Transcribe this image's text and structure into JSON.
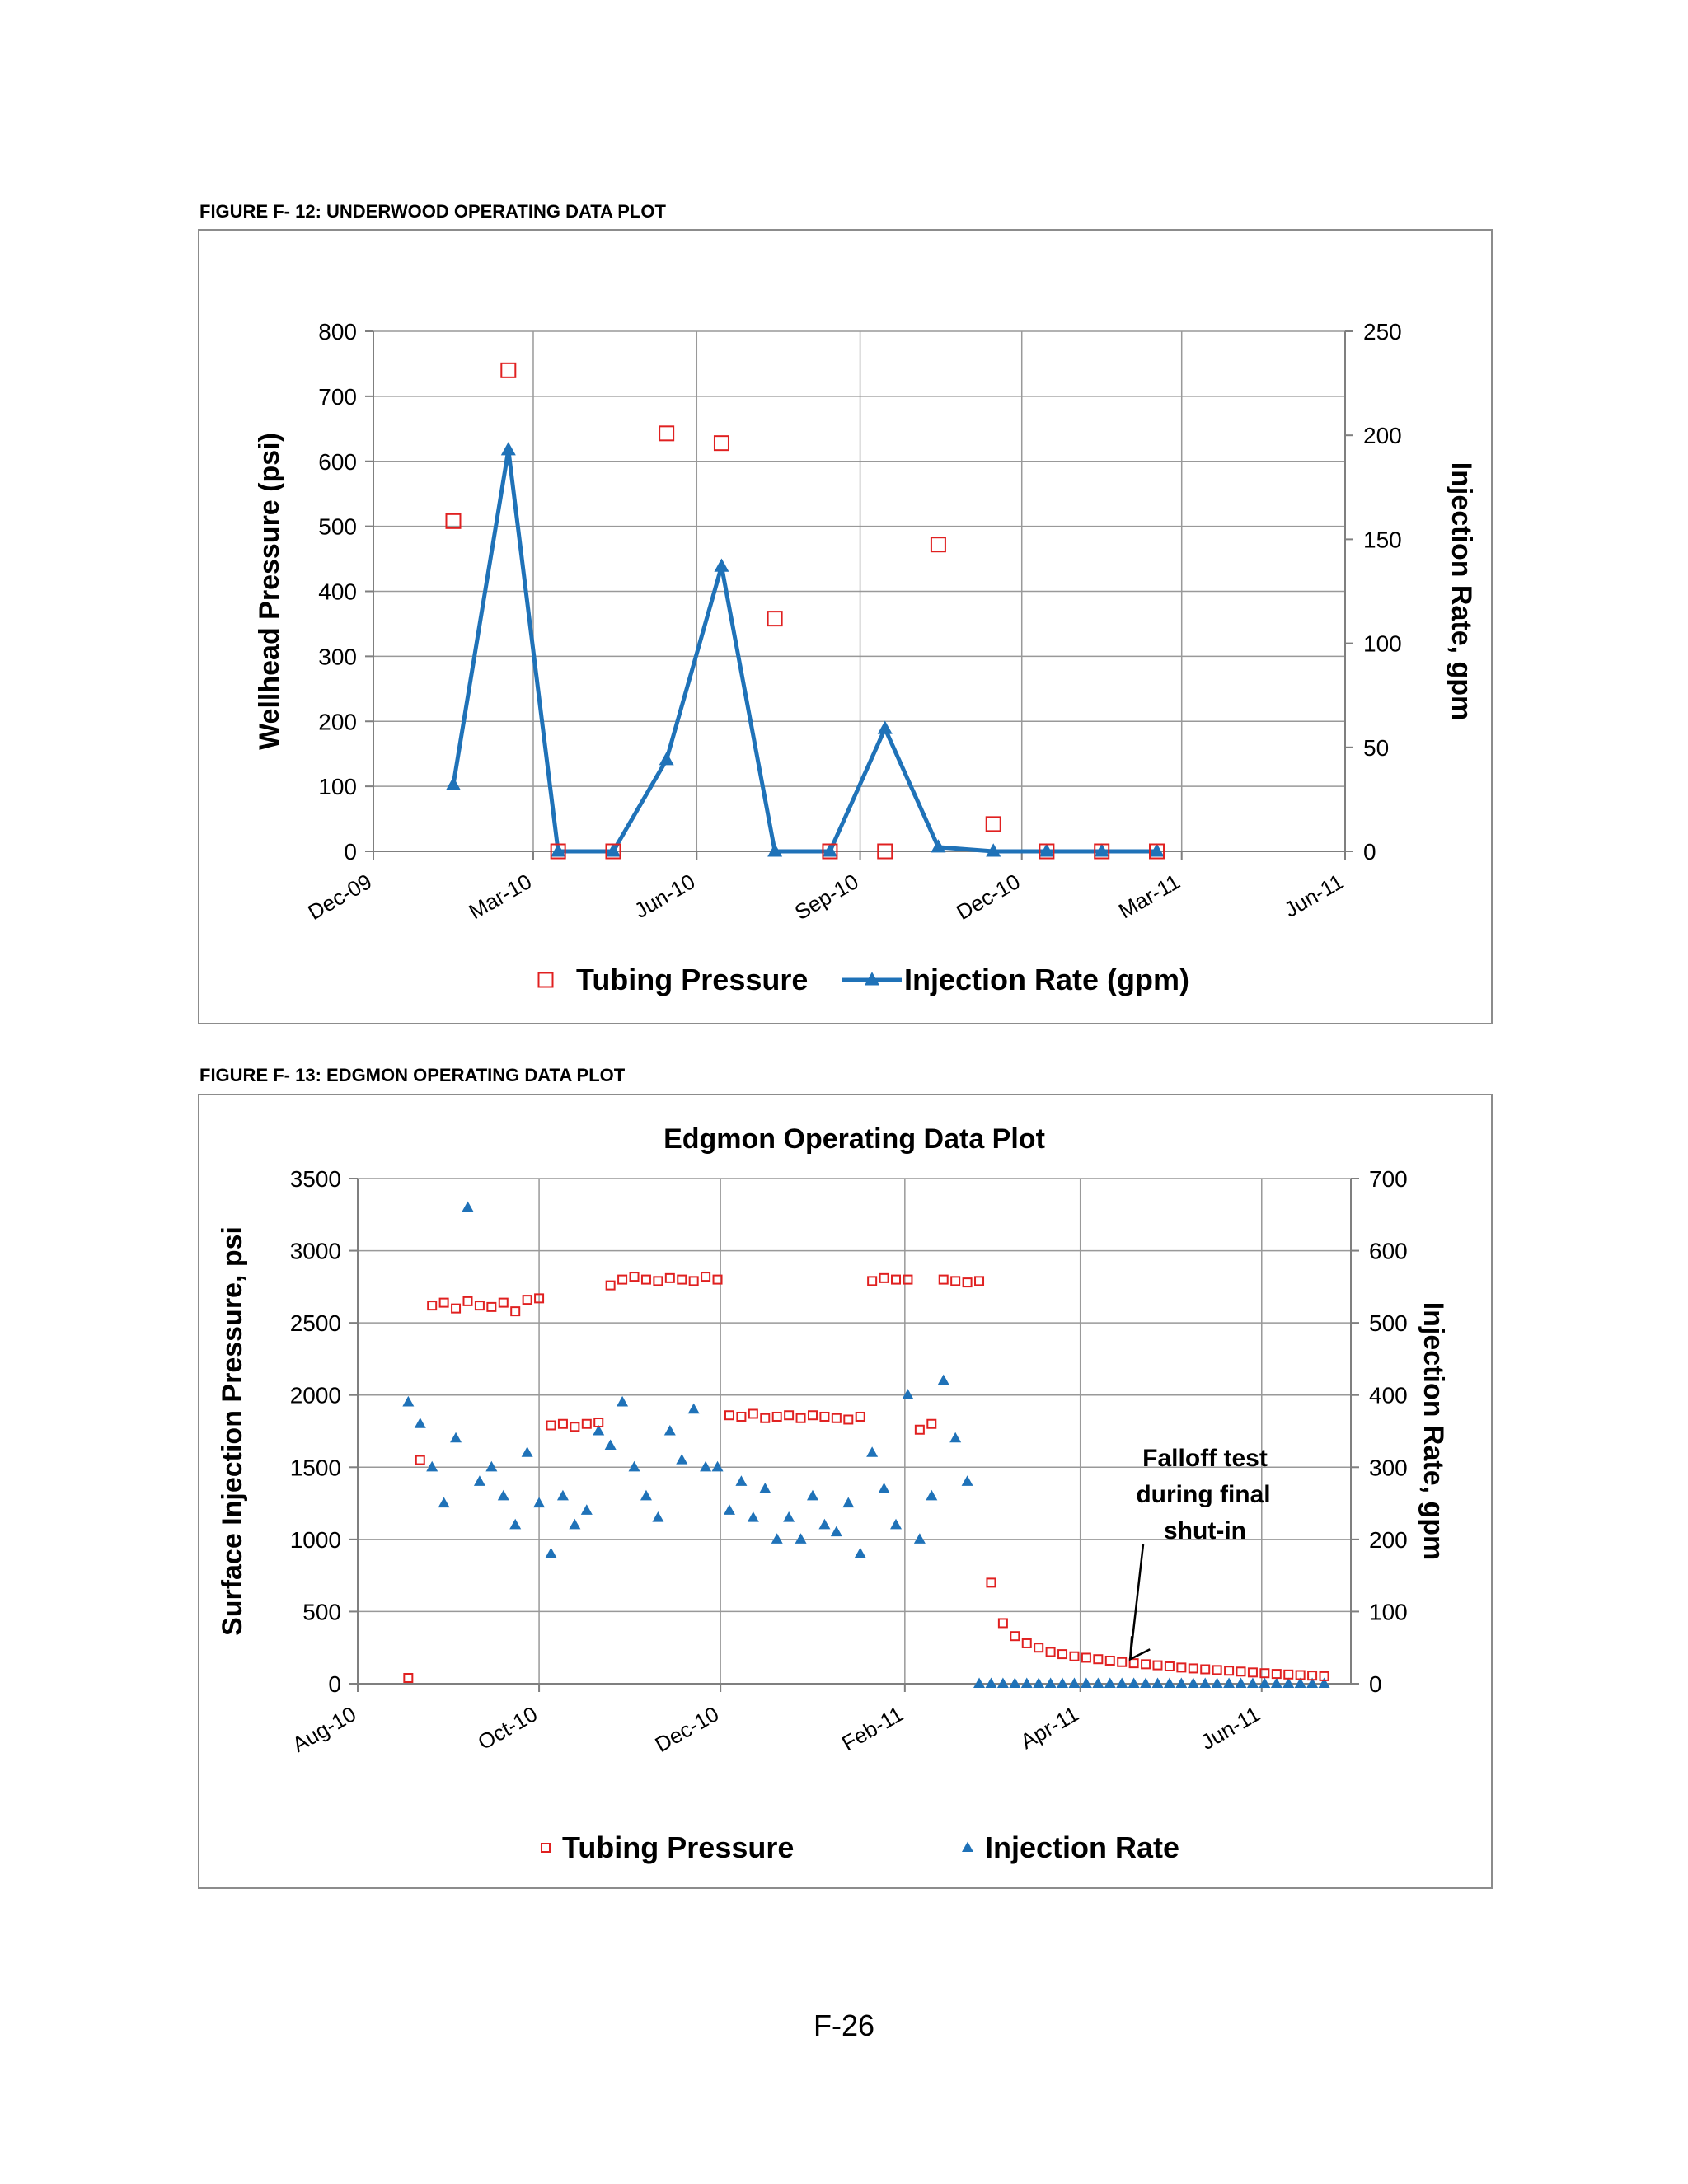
{
  "page": {
    "page_number": "F-26"
  },
  "figures": {
    "underwood_caption": "FIGURE F- 12: UNDERWOOD OPERATING DATA PLOT",
    "edgmon_caption": "FIGURE F- 13: EDGMON OPERATING DATA PLOT"
  },
  "colors": {
    "pressure": "#e02020",
    "rate": "#1f72b8",
    "grid": "#999999"
  },
  "chart_data": [
    {
      "type": "scatter",
      "title": "",
      "x_ticks": [
        "Dec-09",
        "Mar-10",
        "Jun-10",
        "Sep-10",
        "Dec-10",
        "Mar-11",
        "Jun-11"
      ],
      "y_ticks": [
        "0",
        "100",
        "200",
        "300",
        "400",
        "500",
        "600",
        "700",
        "800"
      ],
      "y2_ticks": [
        "0",
        "50",
        "100",
        "150",
        "200",
        "250"
      ],
      "ylabel": "Wellhead Pressure (psi)",
      "y2label": "Injection Rate, gpm",
      "xlim": [
        "Dec-09",
        "Jun-11"
      ],
      "ylim": [
        0,
        800
      ],
      "y2lim": [
        0,
        250
      ],
      "grid": true,
      "legend_position": "bottom",
      "series": [
        {
          "name": "Tubing Pressure",
          "marker": "open-square",
          "axis": "left",
          "x": [
            "2010-01-15",
            "2010-02-15",
            "2010-03-15",
            "2010-04-15",
            "2010-05-15",
            "2010-06-15",
            "2010-07-15",
            "2010-08-15",
            "2010-09-15",
            "2010-10-15",
            "2010-11-15",
            "2010-12-15",
            "2011-01-15",
            "2011-02-15"
          ],
          "y": [
            508,
            740,
            0,
            0,
            643,
            628,
            358,
            0,
            0,
            472,
            42,
            0,
            0,
            0
          ]
        },
        {
          "name": "Injection Rate (gpm)",
          "marker": "filled-triangle-line",
          "axis": "right",
          "x": [
            "2010-01-15",
            "2010-02-15",
            "2010-03-15",
            "2010-04-15",
            "2010-05-15",
            "2010-06-15",
            "2010-07-15",
            "2010-08-15",
            "2010-09-15",
            "2010-10-15",
            "2010-11-15",
            "2010-12-15",
            "2011-01-15",
            "2011-02-15"
          ],
          "y": [
            32,
            193,
            0,
            0,
            44,
            137,
            0,
            0,
            59,
            2,
            0,
            0,
            0,
            0
          ]
        }
      ]
    },
    {
      "type": "scatter",
      "title": "Edgmon Operating Data Plot",
      "x_ticks": [
        "Aug-10",
        "Oct-10",
        "Dec-10",
        "Feb-11",
        "Apr-11",
        "Jun-11"
      ],
      "y_ticks": [
        "0",
        "500",
        "1000",
        "1500",
        "2000",
        "2500",
        "3000",
        "3500"
      ],
      "y2_ticks": [
        "0",
        "100",
        "200",
        "300",
        "400",
        "500",
        "600",
        "700"
      ],
      "ylabel": "Surface Injection Pressure, psi",
      "y2label": "Injection Rate, gpm",
      "xlim": [
        "Aug-10",
        "Jul-11"
      ],
      "ylim": [
        0,
        3500
      ],
      "y2lim": [
        0,
        700
      ],
      "grid": true,
      "legend_position": "bottom",
      "annotation": {
        "line1": "Falloff test",
        "line2": "during final",
        "line3": "shut-in",
        "points_to": "2011-04-15"
      },
      "series": [
        {
          "name": "Tubing Pressure",
          "marker": "open-square",
          "axis": "left",
          "x": [
            "2010-08-18",
            "2010-08-22",
            "2010-08-26",
            "2010-08-30",
            "2010-09-03",
            "2010-09-07",
            "2010-09-11",
            "2010-09-15",
            "2010-09-19",
            "2010-09-23",
            "2010-09-27",
            "2010-10-01",
            "2010-10-05",
            "2010-10-09",
            "2010-10-13",
            "2010-10-17",
            "2010-10-21",
            "2010-10-25",
            "2010-10-29",
            "2010-11-02",
            "2010-11-06",
            "2010-11-10",
            "2010-11-14",
            "2010-11-18",
            "2010-11-22",
            "2010-11-26",
            "2010-11-30",
            "2010-12-04",
            "2010-12-08",
            "2010-12-12",
            "2010-12-16",
            "2010-12-20",
            "2010-12-24",
            "2010-12-28",
            "2011-01-01",
            "2011-01-05",
            "2011-01-09",
            "2011-01-13",
            "2011-01-17",
            "2011-01-21",
            "2011-01-25",
            "2011-01-29",
            "2011-02-02",
            "2011-02-06",
            "2011-02-10",
            "2011-02-14",
            "2011-02-18",
            "2011-02-22",
            "2011-02-26",
            "2011-03-02",
            "2011-03-06",
            "2011-03-10",
            "2011-03-14",
            "2011-03-18",
            "2011-03-22",
            "2011-03-26",
            "2011-03-30",
            "2011-04-03",
            "2011-04-07",
            "2011-04-11",
            "2011-04-15",
            "2011-04-19",
            "2011-04-23",
            "2011-04-27",
            "2011-05-01",
            "2011-05-05",
            "2011-05-09",
            "2011-05-13",
            "2011-05-17",
            "2011-05-21",
            "2011-05-25",
            "2011-05-29",
            "2011-06-02",
            "2011-06-06",
            "2011-06-10",
            "2011-06-14",
            "2011-06-18",
            "2011-06-22"
          ],
          "y": [
            40,
            1550,
            2620,
            2640,
            2600,
            2650,
            2620,
            2610,
            2640,
            2580,
            2660,
            2670,
            1790,
            1800,
            1780,
            1800,
            1810,
            2760,
            2800,
            2820,
            2800,
            2790,
            2810,
            2800,
            2790,
            2820,
            2800,
            1860,
            1850,
            1870,
            1840,
            1850,
            1860,
            1840,
            1860,
            1850,
            1840,
            1830,
            1850,
            2790,
            2810,
            2800,
            2800,
            1760,
            1800,
            2800,
            2790,
            2780,
            2790,
            700,
            420,
            330,
            280,
            250,
            220,
            205,
            190,
            180,
            170,
            160,
            150,
            142,
            135,
            128,
            120,
            112,
            106,
            100,
            95,
            90,
            84,
            78,
            73,
            68,
            64,
            60,
            56,
            52
          ]
        },
        {
          "name": "Injection Rate",
          "marker": "filled-triangle",
          "axis": "right",
          "x": [
            "2010-08-18",
            "2010-08-22",
            "2010-08-26",
            "2010-08-30",
            "2010-09-03",
            "2010-09-07",
            "2010-09-11",
            "2010-09-15",
            "2010-09-19",
            "2010-09-23",
            "2010-09-27",
            "2010-10-01",
            "2010-10-05",
            "2010-10-09",
            "2010-10-13",
            "2010-10-17",
            "2010-10-21",
            "2010-10-25",
            "2010-10-29",
            "2010-11-02",
            "2010-11-06",
            "2010-11-10",
            "2010-11-14",
            "2010-11-18",
            "2010-11-22",
            "2010-11-26",
            "2010-11-30",
            "2010-12-04",
            "2010-12-08",
            "2010-12-12",
            "2010-12-16",
            "2010-12-20",
            "2010-12-24",
            "2010-12-28",
            "2011-01-01",
            "2011-01-05",
            "2011-01-09",
            "2011-01-13",
            "2011-01-17",
            "2011-01-21",
            "2011-01-25",
            "2011-01-29",
            "2011-02-02",
            "2011-02-06",
            "2011-02-10",
            "2011-02-14",
            "2011-02-18",
            "2011-02-22",
            "2011-02-26",
            "2011-03-02",
            "2011-03-06",
            "2011-03-10",
            "2011-03-14",
            "2011-03-18",
            "2011-03-22",
            "2011-03-26",
            "2011-03-30",
            "2011-04-03",
            "2011-04-07",
            "2011-04-11",
            "2011-04-15",
            "2011-04-19",
            "2011-04-23",
            "2011-04-27",
            "2011-05-01",
            "2011-05-05",
            "2011-05-09",
            "2011-05-13",
            "2011-05-17",
            "2011-05-21",
            "2011-05-25",
            "2011-05-29",
            "2011-06-02",
            "2011-06-06",
            "2011-06-10",
            "2011-06-14",
            "2011-06-18",
            "2011-06-22"
          ],
          "y": [
            390,
            360,
            300,
            250,
            340,
            660,
            280,
            300,
            260,
            220,
            320,
            250,
            180,
            260,
            220,
            240,
            350,
            330,
            390,
            300,
            260,
            230,
            350,
            310,
            380,
            300,
            300,
            240,
            280,
            230,
            270,
            200,
            230,
            200,
            260,
            220,
            210,
            250,
            180,
            320,
            270,
            220,
            400,
            200,
            260,
            420,
            340,
            280,
            0,
            0,
            0,
            0,
            0,
            0,
            0,
            0,
            0,
            0,
            0,
            0,
            0,
            0,
            0,
            0,
            0,
            0,
            0,
            0,
            0,
            0,
            0,
            0,
            0,
            0,
            0,
            0,
            0,
            0
          ]
        }
      ]
    }
  ]
}
